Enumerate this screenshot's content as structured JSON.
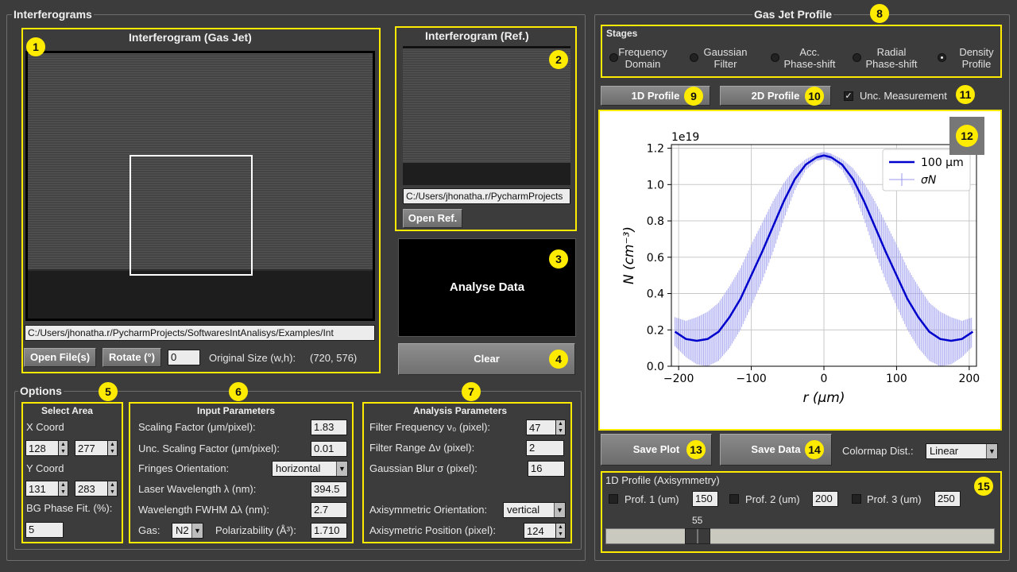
{
  "interferograms": {
    "title": "Interferograms",
    "gasjet": {
      "title": "Interferogram (Gas Jet)",
      "path": "C:/Users/jhonatha.r/PycharmProjects/SoftwaresIntAnalisys/Examples/Int",
      "open_label": "Open File(s)",
      "rotate_label": "Rotate (°)",
      "rotate_value": "0",
      "size_label": "Original Size (w,h):",
      "size_value": "(720, 576)"
    },
    "ref": {
      "title": "Interferogram (Ref.)",
      "path": "C:/Users/jhonatha.r/PycharmProjects",
      "open_label": "Open Ref."
    },
    "analyse_label": "Analyse Data",
    "clear_label": "Clear"
  },
  "options": {
    "title": "Options",
    "select_area": {
      "title": "Select Area",
      "x_label": "X Coord",
      "x1": "128",
      "x2": "277",
      "y_label": "Y Coord",
      "y1": "131",
      "y2": "283",
      "bg_label": "BG Phase Fit. (%):",
      "bg_value": "5"
    },
    "input": {
      "title": "Input Parameters",
      "scaling_label": "Scaling Factor (μm/pixel):",
      "scaling_value": "1.83",
      "unc_label": "Unc. Scaling Factor (μm/pixel):",
      "unc_value": "0.01",
      "fringes_label": "Fringes Orientation:",
      "fringes_value": "horizontal",
      "laser_label": "Laser Wavelength λ (nm):",
      "laser_value": "394.5",
      "fwhm_label": "Wavelength FWHM Δλ (nm):",
      "fwhm_value": "2.7",
      "gas_label": "Gas:",
      "gas_value": "N2",
      "polar_label": "Polarizability (Å³):",
      "polar_value": "1.710"
    },
    "analysis": {
      "title": "Analysis Parameters",
      "freq_label": "Filter Frequency   ν₀ (pixel):",
      "freq_value": "47",
      "range_label": "Filter Range  Δν (pixel):",
      "range_value": "2",
      "blur_label": "Gaussian Blur σ (pixel):",
      "blur_value": "16",
      "axo_label": "Axisymmetric Orientation:",
      "axo_value": "vertical",
      "axp_label": "Axisymetric Position (pixel):",
      "axp_value": "124"
    }
  },
  "profile": {
    "title": "Gas Jet Profile",
    "stages_title": "Stages",
    "stages": [
      {
        "l1": "Frequency",
        "l2": "Domain"
      },
      {
        "l1": "Gaussian",
        "l2": "Filter"
      },
      {
        "l1": "Acc.",
        "l2": "Phase-shift"
      },
      {
        "l1": "Radial",
        "l2": "Phase-shift"
      },
      {
        "l1": "Density",
        "l2": "Profile"
      }
    ],
    "selected_stage": 4,
    "btn_1d": "1D Profile",
    "btn_2d": "2D Profile",
    "unc_label": "Unc. Measurement",
    "unc_checked": true,
    "save_plot": "Save Plot",
    "save_data": "Save Data",
    "colormap_label": "Colormap Dist.:",
    "colormap_value": "Linear",
    "axisym": {
      "title": "1D Profile (Axisymmetry)",
      "p1_label": "Prof. 1 (um)",
      "p1_value": "150",
      "p2_label": "Prof. 2 (um)",
      "p2_value": "200",
      "p3_label": "Prof. 3 (um)",
      "p3_value": "250",
      "slider_value": "55",
      "slider_fraction": 0.236
    }
  },
  "badges": [
    "1",
    "2",
    "3",
    "4",
    "5",
    "6",
    "7",
    "8",
    "9",
    "10",
    "11",
    "12",
    "13",
    "14",
    "15"
  ],
  "chart_data": {
    "type": "line",
    "offset_text": "1e19",
    "ylabel": "N (cm⁻³)",
    "xlabel": "r (μm)",
    "xlim": [
      -210,
      210
    ],
    "ylim": [
      0,
      1.22
    ],
    "xticks": [
      -200,
      -100,
      0,
      100,
      200
    ],
    "xtick_labels": [
      "−200",
      "−100",
      "0",
      "100",
      "200"
    ],
    "yticks": [
      0.0,
      0.2,
      0.4,
      0.6,
      0.8,
      1.0,
      1.2
    ],
    "ytick_labels": [
      "0.0",
      "0.2",
      "0.4",
      "0.6",
      "0.8",
      "1.0",
      "1.2"
    ],
    "grid": true,
    "legend_position": "top-right",
    "series": [
      {
        "name": "100  μm",
        "color": "#0000cc",
        "x": [
          -205,
          -190,
          -175,
          -160,
          -145,
          -130,
          -115,
          -100,
          -85,
          -70,
          -55,
          -40,
          -25,
          -10,
          0,
          10,
          25,
          40,
          55,
          70,
          85,
          100,
          115,
          130,
          145,
          160,
          175,
          190,
          205
        ],
        "y": [
          0.19,
          0.15,
          0.14,
          0.15,
          0.19,
          0.27,
          0.37,
          0.5,
          0.63,
          0.77,
          0.91,
          1.03,
          1.11,
          1.15,
          1.16,
          1.15,
          1.11,
          1.03,
          0.91,
          0.77,
          0.63,
          0.5,
          0.37,
          0.27,
          0.19,
          0.15,
          0.14,
          0.15,
          0.19
        ]
      },
      {
        "name": "σN",
        "color": "#9999ee",
        "x": [
          -205,
          -190,
          -175,
          -160,
          -145,
          -130,
          -115,
          -100,
          -85,
          -70,
          -55,
          -40,
          -25,
          -10,
          0,
          10,
          25,
          40,
          55,
          70,
          85,
          100,
          115,
          130,
          145,
          160,
          175,
          190,
          205
        ],
        "err": [
          0.08,
          0.1,
          0.13,
          0.15,
          0.16,
          0.17,
          0.17,
          0.17,
          0.16,
          0.14,
          0.1,
          0.06,
          0.03,
          0.02,
          0.02,
          0.02,
          0.03,
          0.06,
          0.1,
          0.14,
          0.16,
          0.17,
          0.17,
          0.17,
          0.16,
          0.15,
          0.13,
          0.1,
          0.08
        ]
      }
    ]
  }
}
